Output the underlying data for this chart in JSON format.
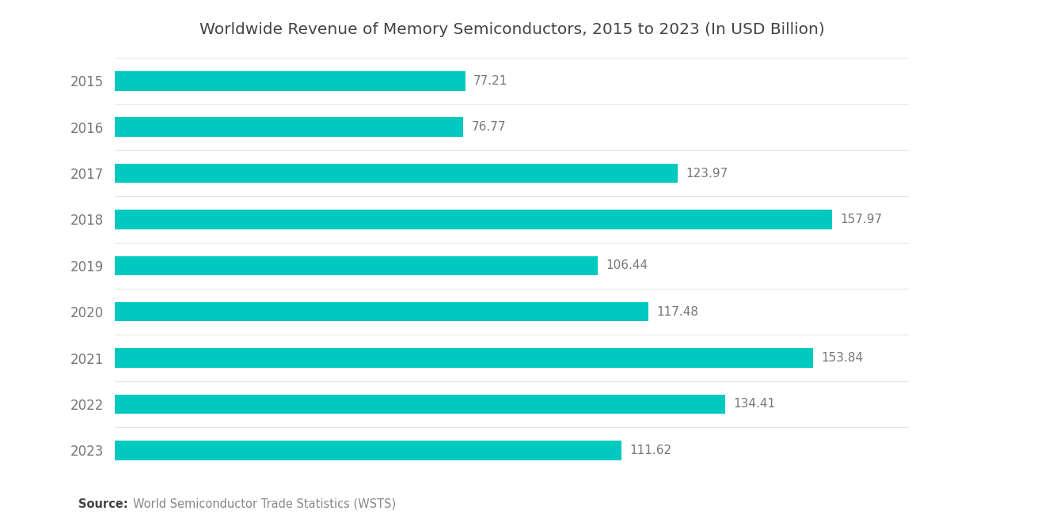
{
  "title": "Worldwide Revenue of Memory Semiconductors, 2015 to 2023 (In USD Billion)",
  "years": [
    "2015",
    "2016",
    "2017",
    "2018",
    "2019",
    "2020",
    "2021",
    "2022",
    "2023"
  ],
  "values": [
    77.21,
    76.77,
    123.97,
    157.97,
    106.44,
    117.48,
    153.84,
    134.41,
    111.62
  ],
  "bar_color": "#00C9C0",
  "background_color": "#ffffff",
  "text_color": "#777777",
  "title_color": "#444444",
  "source_bold": "Source:",
  "source_text": "World Semiconductor Trade Statistics (WSTS)",
  "xlim": [
    0,
    175
  ],
  "bar_height": 0.42,
  "title_fontsize": 14.5,
  "label_fontsize": 11,
  "tick_fontsize": 12,
  "source_fontsize": 10.5
}
